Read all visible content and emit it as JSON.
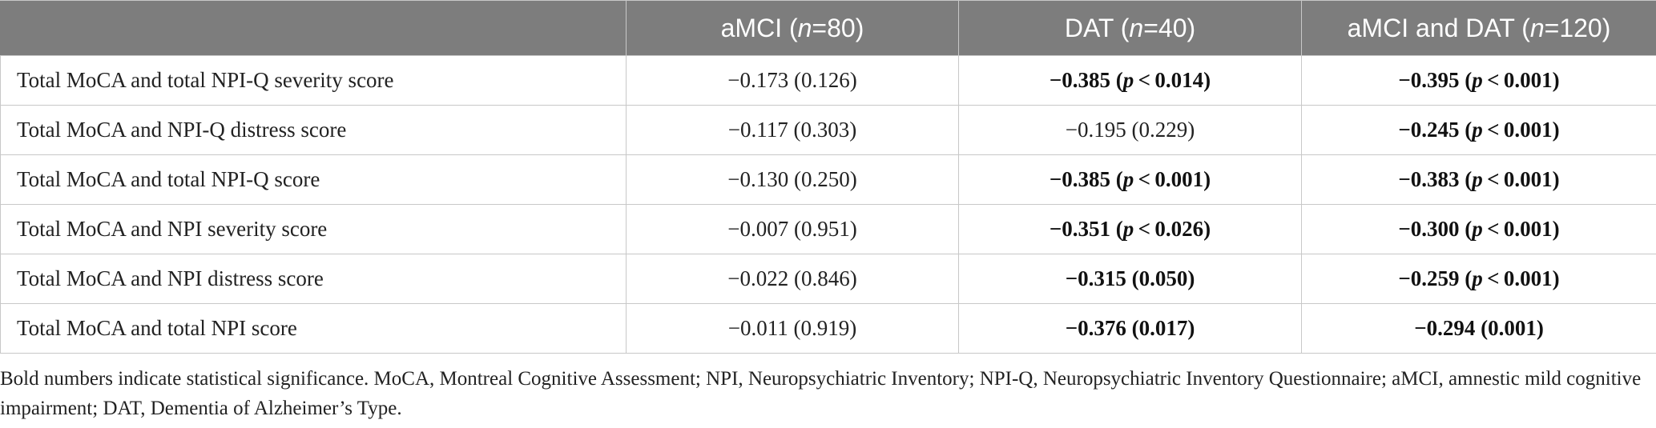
{
  "table": {
    "headers": [
      "",
      "aMCI (n=80)",
      "DAT (n=40)",
      "aMCI and DAT (n=120)"
    ],
    "rows": [
      {
        "label": "Total MoCA and total NPI-Q severity score",
        "cells": [
          {
            "text": "−0.173 (0.126)",
            "bold": false
          },
          {
            "text": "−0.385 (p < 0.014)",
            "bold": true
          },
          {
            "text": "−0.395 (p < 0.001)",
            "bold": true
          }
        ]
      },
      {
        "label": "Total MoCA and NPI-Q distress score",
        "cells": [
          {
            "text": "−0.117 (0.303)",
            "bold": false
          },
          {
            "text": "−0.195 (0.229)",
            "bold": false
          },
          {
            "text": "−0.245 (p < 0.001)",
            "bold": true
          }
        ]
      },
      {
        "label": "Total MoCA and total NPI-Q score",
        "cells": [
          {
            "text": "−0.130 (0.250)",
            "bold": false
          },
          {
            "text": "−0.385 (p < 0.001)",
            "bold": true
          },
          {
            "text": "−0.383 (p < 0.001)",
            "bold": true
          }
        ]
      },
      {
        "label": "Total MoCA and NPI severity score",
        "cells": [
          {
            "text": "−0.007 (0.951)",
            "bold": false
          },
          {
            "text": "−0.351 (p < 0.026)",
            "bold": true
          },
          {
            "text": "−0.300 (p < 0.001)",
            "bold": true
          }
        ]
      },
      {
        "label": "Total MoCA and NPI distress score",
        "cells": [
          {
            "text": "−0.022 (0.846)",
            "bold": false
          },
          {
            "text": "−0.315 (0.050)",
            "bold": true
          },
          {
            "text": "−0.259 (p < 0.001)",
            "bold": true
          }
        ]
      },
      {
        "label": "Total MoCA and total NPI score",
        "cells": [
          {
            "text": "−0.011 (0.919)",
            "bold": false
          },
          {
            "text": "−0.376 (0.017)",
            "bold": true
          },
          {
            "text": "−0.294 (0.001)",
            "bold": true
          }
        ]
      }
    ]
  },
  "footnote": "Bold numbers indicate statistical significance. MoCA, Montreal Cognitive Assessment; NPI, Neuropsychiatric Inventory; NPI-Q, Neuropsychiatric Inventory Questionnaire; aMCI, amnestic mild cognitive impairment; DAT, Dementia of Alzheimer’s Type.",
  "colors": {
    "header_bg": "#7d7d7d",
    "header_text": "#ffffff",
    "grid": "#c8c8c8"
  }
}
